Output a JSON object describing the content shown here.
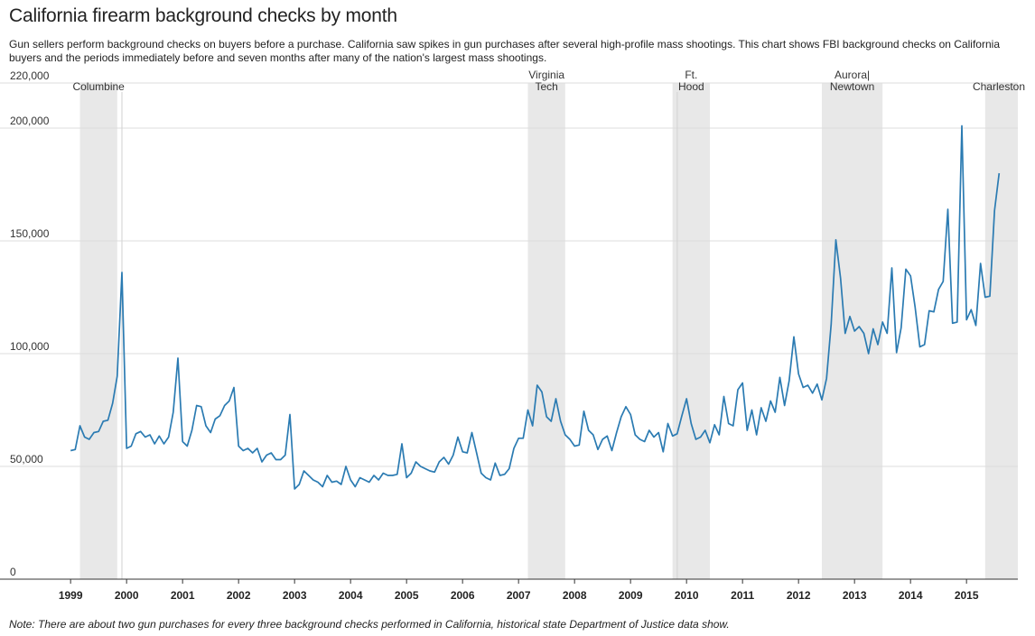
{
  "title": "California firearm background checks by month",
  "subtitle": "Gun sellers perform background checks on buyers before a purchase. California saw spikes in gun purchases after several high-profile mass shootings. This chart shows FBI background checks on California buyers and the periods immediately before and seven months after many of the nation's largest mass shootings.",
  "note": "Note: There are about two gun purchases for every three background checks performed in California, historical state Department of Justice data show.",
  "chart_data": {
    "type": "line",
    "xlim": [
      "1998-12",
      "2015-12"
    ],
    "ylim": [
      0,
      220000
    ],
    "y_ticks": [
      0,
      50000,
      100000,
      150000,
      200000,
      220000
    ],
    "y_tick_labels": [
      "0",
      "50,000",
      "100,000",
      "150,000",
      "200,000",
      "220,000"
    ],
    "x_ticks": [
      "1999",
      "2000",
      "2001",
      "2002",
      "2003",
      "2004",
      "2005",
      "2006",
      "2007",
      "2008",
      "2009",
      "2010",
      "2011",
      "2012",
      "2013",
      "2014",
      "2015"
    ],
    "grid": "horizontal",
    "color": "#2b7bb2",
    "event_lines": [
      "1999-12",
      "2009-11"
    ],
    "shooting_periods": [
      {
        "label": [
          "Columbine"
        ],
        "start": "1999-03",
        "end": "1999-11"
      },
      {
        "label": [
          "Virginia",
          "Tech"
        ],
        "start": "2007-03",
        "end": "2007-11"
      },
      {
        "label": [
          "Ft.",
          "Hood"
        ],
        "start": "2009-10",
        "end": "2010-06"
      },
      {
        "label": [
          "Aurora|",
          "Newtown"
        ],
        "start": "2012-06",
        "end": "2013-07"
      },
      {
        "label": [
          "Charleston"
        ],
        "start": "2015-05",
        "end": "2015-12"
      }
    ],
    "series": [
      {
        "x_start": "1999-01",
        "values": [
          57000,
          57500,
          68000,
          63000,
          62000,
          65000,
          65500,
          70000,
          70500,
          78000,
          90000,
          136000,
          58000,
          59000,
          64500,
          65500,
          63000,
          64000,
          60000,
          63500,
          60000,
          63000,
          74000,
          98000,
          61000,
          59000,
          66000,
          77000,
          76500,
          68000,
          65000,
          71000,
          72500,
          77000,
          79000,
          85000,
          59000,
          57000,
          58000,
          56000,
          58000,
          52000,
          55000,
          56000,
          53000,
          53000,
          55000,
          73000,
          40000,
          42000,
          48000,
          46000,
          44000,
          43000,
          41000,
          46000,
          43000,
          43500,
          42000,
          50000,
          44000,
          41000,
          45000,
          44000,
          43000,
          46000,
          44000,
          47000,
          46000,
          46000,
          46500,
          60000,
          45000,
          47000,
          52000,
          50000,
          49000,
          48000,
          47500,
          52000,
          54000,
          51000,
          55000,
          63000,
          56500,
          56000,
          65000,
          56000,
          47000,
          45000,
          44000,
          51500,
          46000,
          46500,
          49000,
          58000,
          62500,
          62500,
          75000,
          68000,
          86000,
          83000,
          72000,
          70000,
          80000,
          70000,
          64000,
          62000,
          59000,
          59500,
          74500,
          66000,
          64000,
          57500,
          62000,
          63500,
          57000,
          65000,
          72000,
          76500,
          73000,
          64000,
          62000,
          61000,
          66000,
          63000,
          65000,
          56500,
          69000,
          63500,
          64500,
          72500,
          80000,
          69000,
          62000,
          63000,
          66000,
          60500,
          68500,
          64000,
          81000,
          69000,
          68000,
          84000,
          87000,
          66000,
          75000,
          64000,
          76000,
          70000,
          79000,
          74000,
          89500,
          77000,
          88000,
          107500,
          91000,
          85000,
          86000,
          82500,
          86500,
          79500,
          89000,
          113000,
          150500,
          133500,
          109000,
          116500,
          110000,
          112000,
          109000,
          100000,
          111000,
          104000,
          114000,
          109000,
          138000,
          100500,
          111500,
          137500,
          134500,
          120500,
          103000,
          104000,
          119000,
          118500,
          128500,
          132000,
          164000,
          113500,
          114000,
          201000,
          115000,
          119500,
          112500,
          140000,
          125000,
          125500,
          163500,
          180000
        ]
      }
    ]
  }
}
